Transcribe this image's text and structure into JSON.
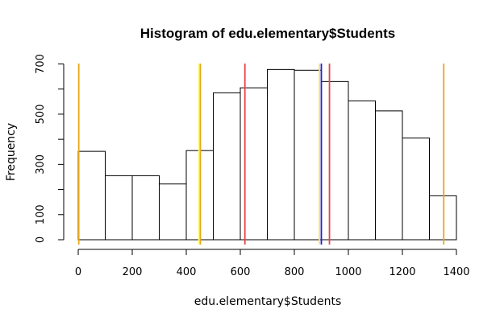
{
  "chart_data": {
    "type": "bar",
    "title": "Histogram of edu.elementary$Students",
    "xlabel": "edu.elementary$Students",
    "ylabel": "Frequency",
    "xlim": [
      0,
      1400
    ],
    "ylim": [
      0,
      700
    ],
    "x_ticks": [
      "0",
      "200",
      "400",
      "600",
      "800",
      "1000",
      "1200",
      "1400"
    ],
    "y_ticks": [
      "0",
      "100",
      "300",
      "500",
      "700"
    ],
    "grid": false,
    "bins": [
      {
        "from": 0,
        "to": 100,
        "count": 352
      },
      {
        "from": 100,
        "to": 200,
        "count": 255
      },
      {
        "from": 200,
        "to": 300,
        "count": 255
      },
      {
        "from": 300,
        "to": 400,
        "count": 222
      },
      {
        "from": 400,
        "to": 500,
        "count": 355
      },
      {
        "from": 500,
        "to": 600,
        "count": 585
      },
      {
        "from": 600,
        "to": 700,
        "count": 605
      },
      {
        "from": 700,
        "to": 800,
        "count": 678
      },
      {
        "from": 800,
        "to": 900,
        "count": 675
      },
      {
        "from": 900,
        "to": 1000,
        "count": 630
      },
      {
        "from": 1000,
        "to": 1100,
        "count": 553
      },
      {
        "from": 1100,
        "to": 1200,
        "count": 513
      },
      {
        "from": 1200,
        "to": 1300,
        "count": 405
      },
      {
        "from": 1300,
        "to": 1400,
        "count": 175
      }
    ],
    "vlines": [
      {
        "x": 2,
        "color": "#E6A817"
      },
      {
        "x": 447,
        "color": "#FFFF66"
      },
      {
        "x": 452,
        "color": "#E6A817"
      },
      {
        "x": 617,
        "color": "#E8434A"
      },
      {
        "x": 893,
        "color": "#FFE066"
      },
      {
        "x": 900,
        "color": "#1E1EE6"
      },
      {
        "x": 930,
        "color": "#E8434A"
      },
      {
        "x": 1353,
        "color": "#E6A817"
      }
    ]
  }
}
